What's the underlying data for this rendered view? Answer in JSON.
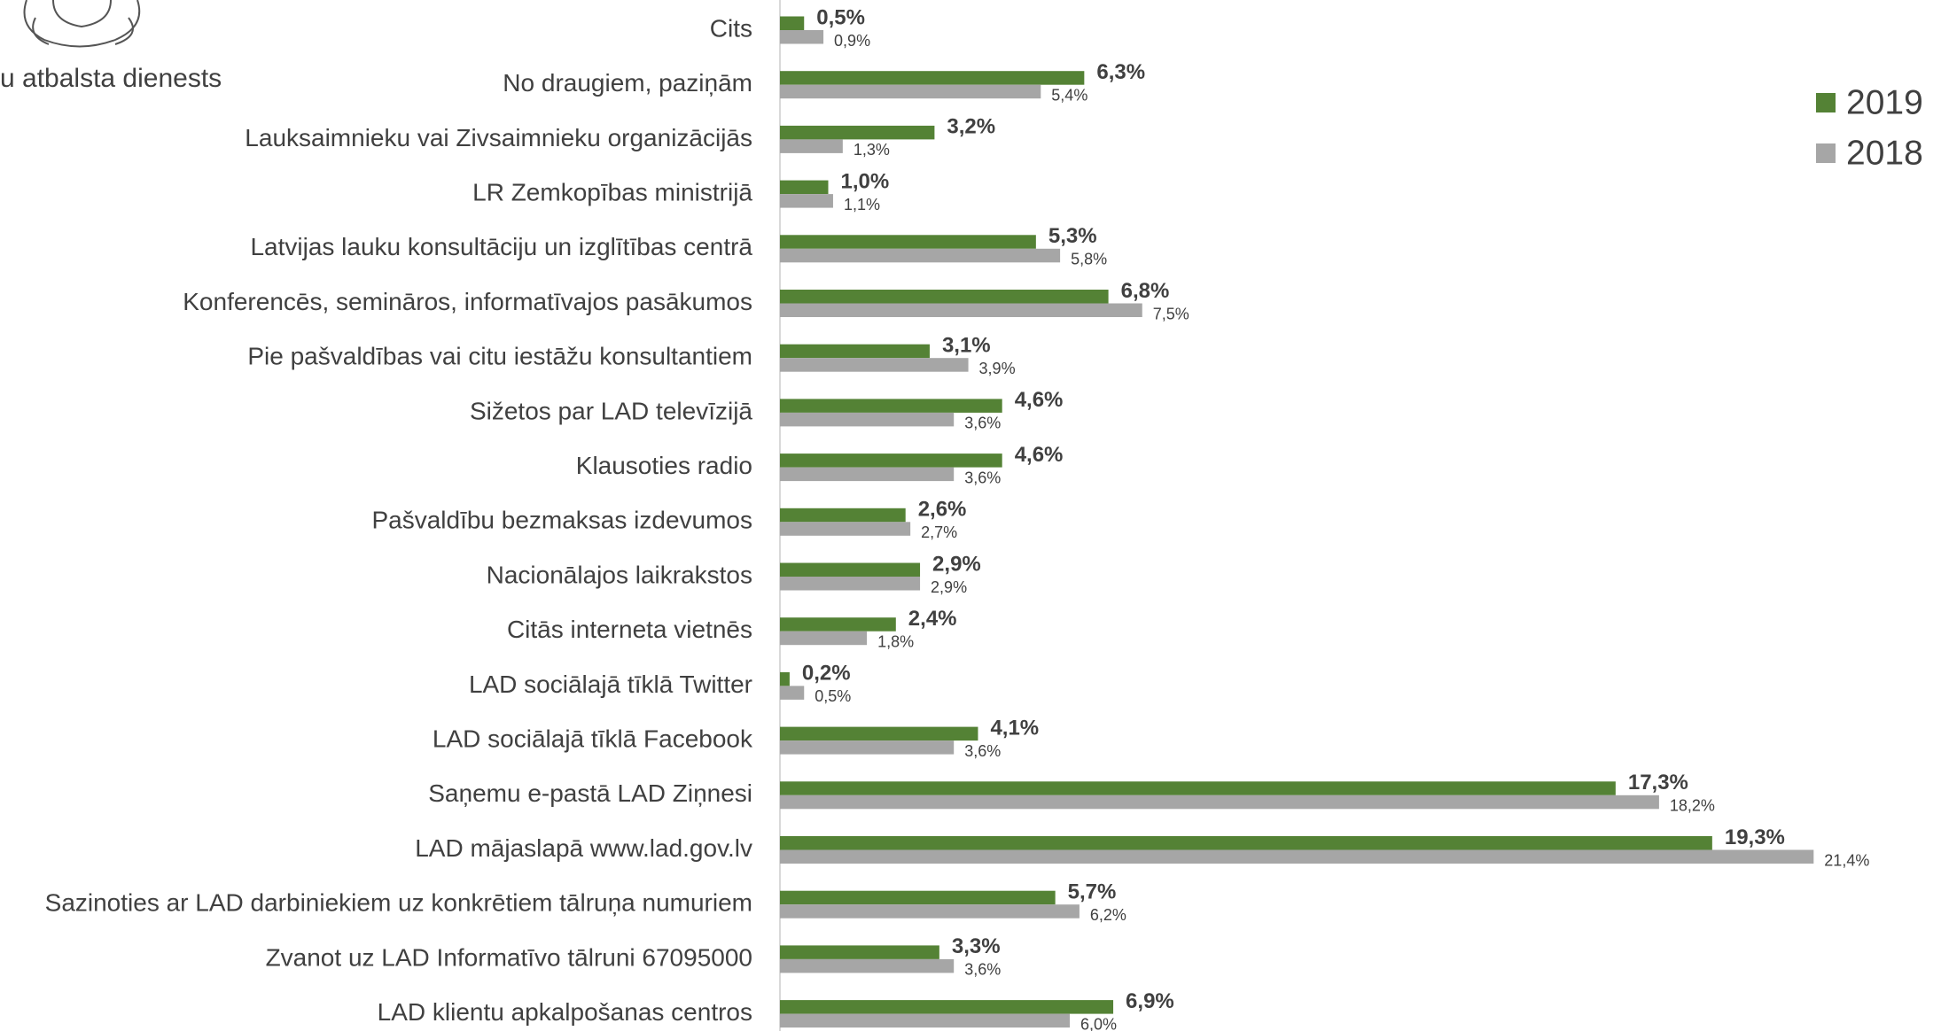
{
  "chart_data": {
    "type": "barh",
    "annotations": [
      "u atbalsta dienests"
    ],
    "categories": [
      "Cits",
      "No draugiem, paziņām",
      "Lauksaimnieku vai Zivsaimnieku organizācijās",
      "LR Zemkopības ministrijā",
      "Latvijas lauku konsultāciju un izglītības centrā",
      "Konferencēs, semināros, informatīvajos pasākumos",
      "Pie pašvaldības vai citu iestāžu konsultantiem",
      "Sižetos par LAD televīzijā",
      "Klausoties radio",
      "Pašvaldību bezmaksas izdevumos",
      "Nacionālajos laikrakstos",
      "Citās interneta vietnēs",
      "LAD sociālajā tīklā Twitter",
      "LAD sociālajā tīklā Facebook",
      "Saņemu e-pastā LAD Ziņnesi",
      "LAD mājaslapā www.lad.gov.lv",
      "Sazinoties ar LAD darbiniekiem uz konkrētiem tālruņa numuriem",
      "Zvanot uz LAD Informatīvo tālruni 67095000",
      "LAD klientu apkalpošanas centros"
    ],
    "series": [
      {
        "name": "2019",
        "color": "#548235",
        "values": [
          0.5,
          6.3,
          3.2,
          1.0,
          5.3,
          6.8,
          3.1,
          4.6,
          4.6,
          2.6,
          2.9,
          2.4,
          0.2,
          4.1,
          17.3,
          19.3,
          5.7,
          3.3,
          6.9
        ],
        "value_labels": [
          "0,5%",
          "6,3%",
          "3,2%",
          "1,0%",
          "5,3%",
          "6,8%",
          "3,1%",
          "4,6%",
          "4,6%",
          "2,6%",
          "2,9%",
          "2,4%",
          "0,2%",
          "4,1%",
          "17,3%",
          "19,3%",
          "5,7%",
          "3,3%",
          "6,9%"
        ]
      },
      {
        "name": "2018",
        "color": "#a6a6a6",
        "values": [
          0.9,
          5.4,
          1.3,
          1.1,
          5.8,
          7.5,
          3.9,
          3.6,
          3.6,
          2.7,
          2.9,
          1.8,
          0.5,
          3.6,
          18.2,
          21.4,
          6.2,
          3.6,
          6.0
        ],
        "value_labels": [
          "0,9%",
          "5,4%",
          "1,3%",
          "1,1%",
          "5,8%",
          "7,5%",
          "3,9%",
          "3,6%",
          "3,6%",
          "2,7%",
          "2,9%",
          "1,8%",
          "0,5%",
          "3,6%",
          "18,2%",
          "21,4%",
          "6,2%",
          "3,6%",
          "6,0%"
        ]
      }
    ],
    "xlim": [
      0,
      22
    ],
    "legend": "right"
  }
}
